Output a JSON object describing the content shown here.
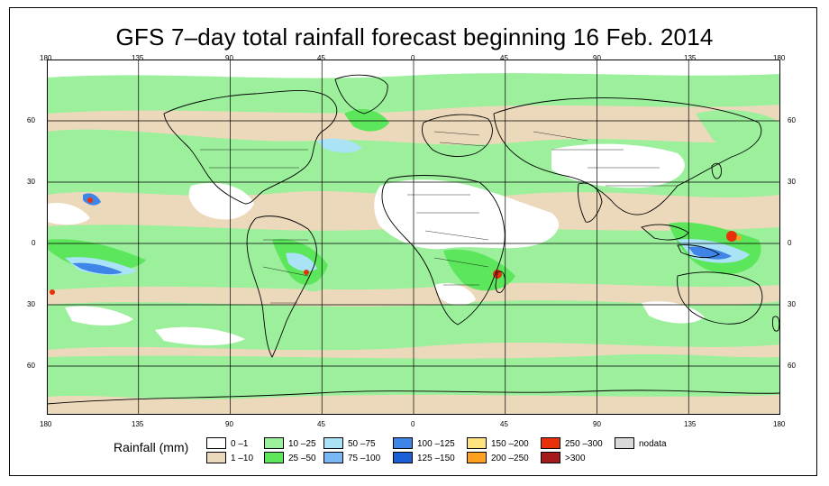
{
  "title": "GFS 7–day total rainfall forecast beginning 16 Feb. 2014",
  "map": {
    "top_lon_labels": [
      "180",
      "135",
      "90",
      "45",
      "0",
      "45",
      "90",
      "135",
      "180"
    ],
    "bottom_lon_labels": [
      "180",
      "135",
      "90",
      "45",
      "0",
      "45",
      "90",
      "135",
      "180"
    ],
    "lat_labels": [
      "60",
      "30",
      "0",
      "30",
      "60"
    ],
    "gridlines": true,
    "coastlines": true,
    "country_borders": true
  },
  "legend": {
    "title": "Rainfall (mm)",
    "items": [
      {
        "label": "0 –1",
        "color": "#ffffff"
      },
      {
        "label": "1 –10",
        "color": "#ecd9bb"
      },
      {
        "label": "10 –25",
        "color": "#9cf09c"
      },
      {
        "label": "25 –50",
        "color": "#5ce65c"
      },
      {
        "label": "50 –75",
        "color": "#a9e3f5"
      },
      {
        "label": "75 –100",
        "color": "#7ab8f5"
      },
      {
        "label": "100 –125",
        "color": "#3f85e8"
      },
      {
        "label": "125 –150",
        "color": "#1a5fd6"
      },
      {
        "label": "150 –200",
        "color": "#ffe380"
      },
      {
        "label": "200 –250",
        "color": "#ffa020"
      },
      {
        "label": "250 –300",
        "color": "#e8300a"
      },
      {
        "label": ">300",
        "color": "#a51a1a"
      },
      {
        "label": "nodata",
        "color": "#d9d9d9"
      }
    ]
  }
}
